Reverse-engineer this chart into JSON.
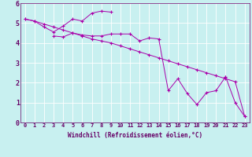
{
  "bg_color": "#c8f0f0",
  "line_color": "#aa00aa",
  "grid_color": "#ffffff",
  "xlabel": "Windchill (Refroidissement éolien,°C)",
  "series": [
    {
      "x": [
        0,
        1,
        2,
        3,
        4,
        5,
        6,
        7,
        8,
        9,
        10,
        11,
        12,
        13,
        14,
        15,
        16,
        17,
        18,
        19,
        20,
        21,
        22,
        23
      ],
      "y": [
        5.2,
        5.1,
        4.95,
        4.8,
        4.65,
        4.5,
        4.35,
        4.2,
        4.1,
        4.0,
        3.85,
        3.7,
        3.55,
        3.4,
        3.25,
        3.1,
        2.95,
        2.8,
        2.65,
        2.5,
        2.35,
        2.2,
        2.05,
        0.3
      ]
    },
    {
      "x": [
        0,
        1,
        2,
        3,
        4,
        5,
        6,
        7,
        8,
        9
      ],
      "y": [
        5.2,
        5.1,
        4.8,
        4.55,
        4.85,
        5.2,
        5.1,
        5.5,
        5.6,
        5.55
      ]
    },
    {
      "x": [
        3,
        4,
        5,
        6,
        7,
        8,
        9,
        10,
        11,
        12,
        13,
        14,
        15,
        16,
        17,
        18,
        19,
        20,
        21
      ],
      "y": [
        4.35,
        4.3,
        4.5,
        4.4,
        4.35,
        4.35,
        4.45,
        4.45,
        4.45,
        4.1,
        4.25,
        4.2,
        1.6,
        2.2,
        1.45,
        0.9,
        1.5,
        1.6,
        2.3
      ]
    },
    {
      "x": [
        21,
        22,
        23
      ],
      "y": [
        2.3,
        1.0,
        0.3
      ]
    }
  ],
  "xlim": [
    -0.5,
    23.5
  ],
  "ylim": [
    0,
    6
  ],
  "ytick_labels": [
    "0",
    "1",
    "2",
    "3",
    "4",
    "5",
    "6"
  ],
  "yticks": [
    0,
    1,
    2,
    3,
    4,
    5,
    6
  ],
  "xticks": [
    0,
    1,
    2,
    3,
    4,
    5,
    6,
    7,
    8,
    9,
    10,
    11,
    12,
    13,
    14,
    15,
    16,
    17,
    18,
    19,
    20,
    21,
    22,
    23
  ],
  "tick_fontsize": 5,
  "xlabel_fontsize": 5.5,
  "tick_color": "#660066",
  "spine_color": "#660066",
  "linewidth": 0.7,
  "markersize": 3.0,
  "markeredgewidth": 0.8
}
